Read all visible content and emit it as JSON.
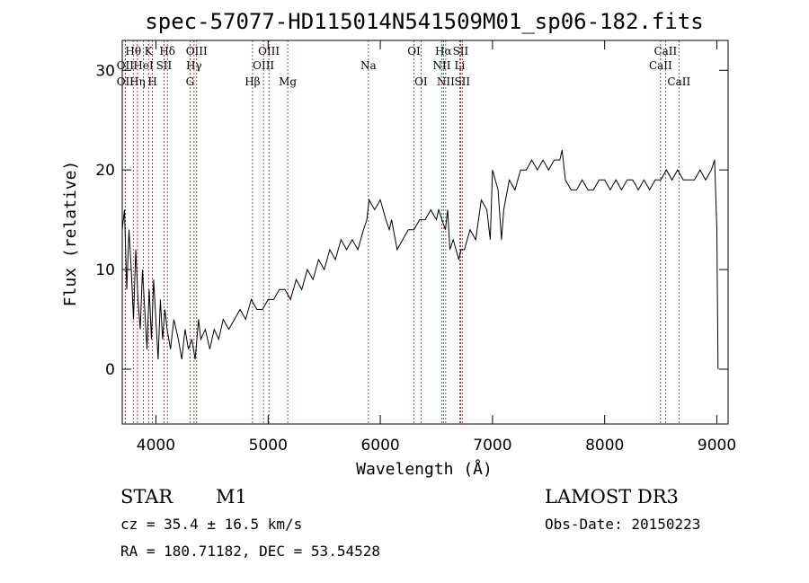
{
  "chart_data": {
    "type": "line",
    "title": "spec-57077-HD115014N541509M01_sp06-182.fits",
    "xlabel": "Wavelength (Å)",
    "ylabel": "Flux (relative)",
    "xlim": [
      3700,
      9100
    ],
    "ylim": [
      -5.5,
      33
    ],
    "x_ticks": [
      4000,
      5000,
      6000,
      7000,
      8000,
      9000
    ],
    "y_ticks": [
      0,
      10,
      20,
      30
    ],
    "series": [
      {
        "name": "spectrum",
        "x": [
          3700,
          3720,
          3740,
          3760,
          3780,
          3800,
          3820,
          3840,
          3860,
          3880,
          3900,
          3920,
          3940,
          3960,
          3980,
          4000,
          4020,
          4040,
          4060,
          4080,
          4100,
          4130,
          4160,
          4200,
          4230,
          4260,
          4290,
          4320,
          4350,
          4380,
          4400,
          4440,
          4480,
          4520,
          4560,
          4600,
          4650,
          4700,
          4750,
          4800,
          4850,
          4900,
          4950,
          5000,
          5050,
          5100,
          5150,
          5200,
          5250,
          5300,
          5350,
          5400,
          5450,
          5500,
          5550,
          5600,
          5650,
          5700,
          5750,
          5800,
          5850,
          5880,
          5900,
          5950,
          6000,
          6050,
          6080,
          6100,
          6150,
          6200,
          6250,
          6300,
          6350,
          6400,
          6450,
          6500,
          6520,
          6550,
          6580,
          6600,
          6620,
          6650,
          6700,
          6720,
          6750,
          6800,
          6850,
          6900,
          6950,
          6980,
          7000,
          7050,
          7080,
          7100,
          7150,
          7200,
          7250,
          7300,
          7350,
          7400,
          7450,
          7500,
          7550,
          7600,
          7620,
          7650,
          7700,
          7750,
          7800,
          7850,
          7900,
          7950,
          8000,
          8050,
          8100,
          8150,
          8200,
          8250,
          8300,
          8350,
          8400,
          8450,
          8500,
          8550,
          8600,
          8650,
          8700,
          8750,
          8800,
          8850,
          8900,
          8950,
          8980,
          9000,
          9010
        ],
        "y": [
          14,
          16,
          8,
          14,
          10,
          5,
          12,
          7,
          4,
          10,
          6,
          2,
          8,
          3,
          9,
          5,
          1,
          7,
          3,
          6,
          4,
          2,
          5,
          3,
          1,
          4,
          2,
          3,
          1,
          5,
          3,
          4,
          2,
          4,
          3,
          5,
          4,
          5,
          6,
          5,
          7,
          6,
          6,
          7,
          7,
          8,
          8,
          7,
          9,
          8,
          10,
          9,
          11,
          10,
          12,
          11,
          13,
          12,
          13,
          12,
          14,
          15,
          17,
          16,
          17,
          15,
          14,
          15,
          12,
          13,
          14,
          14,
          15,
          15,
          16,
          15,
          16,
          15,
          14,
          16,
          12,
          13,
          11,
          12,
          12,
          14,
          13,
          17,
          16,
          13,
          20,
          18,
          13,
          16,
          19,
          18,
          20,
          20,
          21,
          20,
          21,
          20,
          21,
          21,
          22,
          19,
          18,
          18,
          19,
          18,
          18,
          19,
          19,
          18,
          19,
          18,
          19,
          19,
          18,
          19,
          18,
          19,
          19,
          20,
          19,
          20,
          19,
          19,
          19,
          20,
          19,
          20,
          21,
          14,
          0
        ]
      }
    ],
    "line_markers": [
      {
        "label": "Hθ",
        "x": 3798,
        "row": 1
      },
      {
        "label": "OII",
        "x": 3727,
        "row": 2
      },
      {
        "label": "OII",
        "x": 3727,
        "row": 3
      },
      {
        "label": "Hη",
        "x": 3835,
        "row": 3
      },
      {
        "label": "HeI",
        "x": 3889,
        "row": 2
      },
      {
        "label": "K",
        "x": 3934,
        "row": 1
      },
      {
        "label": "H",
        "x": 3969,
        "row": 3
      },
      {
        "label": "SII",
        "x": 4072,
        "row": 2
      },
      {
        "label": "Hδ",
        "x": 4102,
        "row": 1
      },
      {
        "label": "G",
        "x": 4304,
        "row": 3
      },
      {
        "label": "Hγ",
        "x": 4340,
        "row": 2
      },
      {
        "label": "OIII",
        "x": 4363,
        "row": 1
      },
      {
        "label": "Hβ",
        "x": 4861,
        "row": 3
      },
      {
        "label": "OIII",
        "x": 4959,
        "row": 2
      },
      {
        "label": "OIII",
        "x": 5007,
        "row": 1
      },
      {
        "label": "Mg",
        "x": 5175,
        "row": 3
      },
      {
        "label": "Na",
        "x": 5894,
        "row": 2
      },
      {
        "label": "OI",
        "x": 6300,
        "row": 1
      },
      {
        "label": "OI",
        "x": 6363,
        "row": 3
      },
      {
        "label": "NII",
        "x": 6548,
        "row": 2
      },
      {
        "label": "Hα",
        "x": 6563,
        "row": 1
      },
      {
        "label": "NII",
        "x": 6583,
        "row": 3
      },
      {
        "label": "SII",
        "x": 6716,
        "row": 1
      },
      {
        "label": "Li",
        "x": 6708,
        "row": 2
      },
      {
        "label": "SII",
        "x": 6731,
        "row": 3
      },
      {
        "label": "CaII",
        "x": 8498,
        "row": 2
      },
      {
        "label": "CaII",
        "x": 8542,
        "row": 1
      },
      {
        "label": "CaII",
        "x": 8662,
        "row": 3
      }
    ],
    "marker_color": "#8b1a1a"
  },
  "info": {
    "class": "STAR",
    "subclass": "M1",
    "survey": "LAMOST DR3",
    "cz": "cz = 35.4 ± 16.5 km/s",
    "obs_date": "Obs-Date: 20150223",
    "coords": "RA = 180.71182, DEC =  53.54528"
  }
}
